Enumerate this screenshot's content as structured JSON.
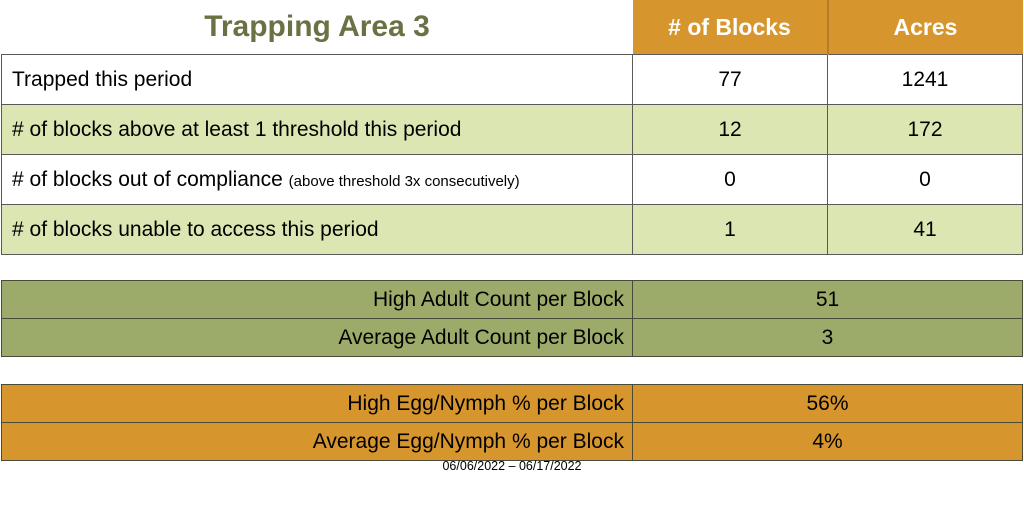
{
  "colors": {
    "header_orange": "#D6962D",
    "row_light_green": "#DCE6B2",
    "olive_green": "#9CAB69",
    "title_green": "#687244",
    "border_gray": "#595959"
  },
  "summary_table": {
    "title": "Trapping Area 3",
    "columns": {
      "blocks": "# of Blocks",
      "acres": "Acres"
    },
    "rows": [
      {
        "label": "Trapped this period",
        "note": "",
        "blocks": "77",
        "acres": "1241"
      },
      {
        "label": "# of blocks above at least 1 threshold this period",
        "note": "",
        "blocks": "12",
        "acres": "172"
      },
      {
        "label": "# of blocks out of compliance",
        "note": "(above threshold 3x consecutively)",
        "blocks": "0",
        "acres": "0"
      },
      {
        "label": "# of blocks unable to access this period",
        "note": "",
        "blocks": "1",
        "acres": "41"
      }
    ]
  },
  "adult_count_table": {
    "rows": [
      {
        "label": "High Adult Count per Block",
        "value": "51"
      },
      {
        "label": "Average Adult Count per Block",
        "value": "3"
      }
    ]
  },
  "egg_nymph_table": {
    "rows": [
      {
        "label": "High Egg/Nymph % per Block",
        "value": "56%"
      },
      {
        "label": "Average Egg/Nymph % per Block",
        "value": "4%"
      }
    ]
  },
  "footer": {
    "date_range": "06/06/2022 – 06/17/2022"
  }
}
